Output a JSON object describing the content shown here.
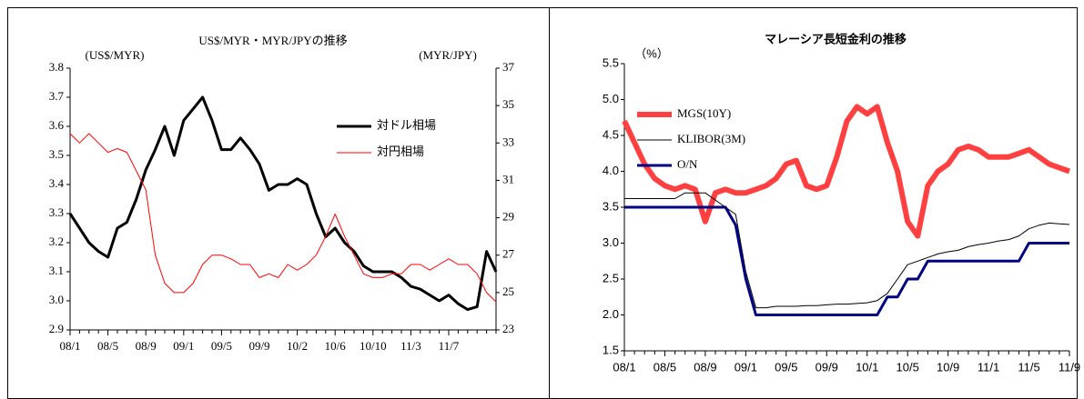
{
  "chart_data": [
    {
      "type": "line",
      "title": "US$/MYR・MYR/JPYの推移",
      "y_label": "(US$/MYR)",
      "y2_label": "(MYR/JPY)",
      "categories": [
        "08/1",
        null,
        null,
        null,
        "08/5",
        null,
        null,
        null,
        "08/9",
        null,
        null,
        null,
        "09/1",
        null,
        null,
        null,
        "09/5",
        null,
        null,
        null,
        "09/9",
        null,
        null,
        null,
        "10/2",
        null,
        null,
        null,
        "10/6",
        null,
        null,
        null,
        "10/10",
        null,
        null,
        null,
        "11/3",
        null,
        null,
        null,
        "11/7",
        null,
        null,
        null,
        null,
        null
      ],
      "series": [
        {
          "name": "対ドル相場",
          "color": "#000000",
          "axis": "y",
          "values": [
            3.3,
            3.25,
            3.2,
            3.17,
            3.15,
            3.25,
            3.27,
            3.35,
            3.45,
            3.52,
            3.6,
            3.5,
            3.62,
            3.66,
            3.7,
            3.62,
            3.52,
            3.52,
            3.56,
            3.52,
            3.47,
            3.38,
            3.4,
            3.4,
            3.42,
            3.4,
            3.3,
            3.22,
            3.25,
            3.2,
            3.17,
            3.12,
            3.1,
            3.1,
            3.1,
            3.08,
            3.05,
            3.04,
            3.02,
            3.0,
            3.02,
            2.99,
            2.97,
            2.98,
            3.17,
            3.1
          ]
        },
        {
          "name": "対円相場",
          "color": "#ff0000",
          "axis": "y2",
          "values": [
            33.5,
            33,
            33.5,
            33,
            32.5,
            32.7,
            32.5,
            31.5,
            30.5,
            27,
            25.5,
            25,
            25,
            25.5,
            26.5,
            27,
            27,
            26.8,
            26.5,
            26.5,
            25.8,
            26,
            25.8,
            26.5,
            26.2,
            26.5,
            27,
            28,
            29.2,
            28,
            27,
            26,
            25.8,
            25.8,
            26,
            26,
            26.5,
            26.5,
            26.2,
            26.5,
            26.8,
            26.5,
            26.5,
            26,
            25,
            24.5
          ]
        }
      ],
      "ylim": [
        2.9,
        3.8
      ],
      "yticks": [
        2.9,
        {
          "value": 3,
          "label": "3.0"
        },
        3.1,
        3.2,
        3.3,
        3.4,
        3.5,
        3.6,
        3.7,
        3.8
      ],
      "y2lim": [
        23,
        37
      ],
      "y2ticks": [
        23,
        25,
        27,
        29,
        31,
        33,
        35,
        37
      ],
      "legend": "upper right"
    },
    {
      "type": "line",
      "title": "マレーシア長短金利の推移",
      "y_label": "（%）",
      "categories": [
        "08/1",
        null,
        null,
        null,
        "08/5",
        null,
        null,
        null,
        "08/9",
        null,
        null,
        null,
        "09/1",
        null,
        null,
        null,
        "09/5",
        null,
        null,
        null,
        "09/9",
        null,
        null,
        null,
        "10/1",
        null,
        null,
        null,
        "10/5",
        null,
        null,
        null,
        "10/9",
        null,
        null,
        null,
        "11/1",
        null,
        null,
        null,
        "11/5",
        null,
        null,
        null,
        "11/9"
      ],
      "series": [
        {
          "name": "MGS(10Y)",
          "color": "#ff4040",
          "values": [
            4.7,
            4.4,
            4.1,
            3.9,
            3.8,
            3.75,
            3.8,
            3.75,
            3.3,
            3.7,
            3.75,
            3.7,
            3.7,
            3.75,
            3.8,
            3.9,
            4.1,
            4.15,
            3.8,
            3.75,
            3.8,
            4.2,
            4.7,
            4.9,
            4.8,
            4.9,
            4.4,
            4.0,
            3.3,
            3.1,
            3.8,
            4.0,
            4.1,
            4.3,
            4.35,
            4.3,
            4.2,
            4.2,
            4.2,
            4.25,
            4.3,
            4.2,
            4.1,
            4.05,
            4.0
          ]
        },
        {
          "name": "KLIBOR(3M)",
          "color": "#000000",
          "values": [
            3.62,
            3.62,
            3.62,
            3.62,
            3.62,
            3.62,
            3.7,
            3.7,
            3.7,
            3.6,
            3.5,
            3.4,
            2.6,
            2.1,
            2.1,
            2.12,
            2.12,
            2.12,
            2.13,
            2.13,
            2.14,
            2.15,
            2.15,
            2.16,
            2.17,
            2.2,
            2.3,
            2.5,
            2.7,
            2.75,
            2.8,
            2.85,
            2.88,
            2.9,
            2.95,
            2.98,
            3.0,
            3.03,
            3.05,
            3.1,
            3.2,
            3.25,
            3.28,
            3.27,
            3.26
          ]
        },
        {
          "name": "O/N",
          "color": "#000080",
          "values": [
            3.5,
            3.5,
            3.5,
            3.5,
            3.5,
            3.5,
            3.5,
            3.5,
            3.5,
            3.5,
            3.5,
            3.25,
            2.5,
            2,
            2,
            2,
            2,
            2,
            2,
            2,
            2,
            2,
            2,
            2,
            2,
            2,
            2.25,
            2.25,
            2.5,
            2.5,
            2.75,
            2.75,
            2.75,
            2.75,
            2.75,
            2.75,
            2.75,
            2.75,
            2.75,
            2.75,
            3,
            3,
            3,
            3,
            3
          ]
        }
      ],
      "ylim": [
        1.5,
        5.5
      ],
      "yticks": [
        1.5,
        {
          "value": 2,
          "label": "2.0"
        },
        2.5,
        {
          "value": 3,
          "label": "3.0"
        },
        3.5,
        {
          "value": 4,
          "label": "4.0"
        },
        4.5,
        {
          "value": 5,
          "label": "5.0"
        },
        5.5
      ],
      "legend": "upper left"
    }
  ]
}
